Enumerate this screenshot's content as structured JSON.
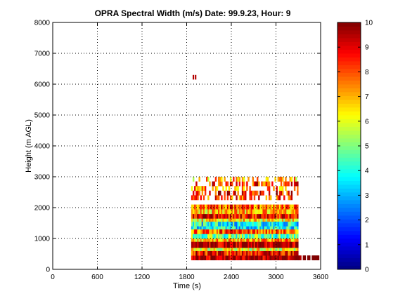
{
  "chart_data": {
    "type": "heatmap",
    "title": "OPRA Spectral Width (m/s)  Date: 99.9.23, Hour: 9",
    "xlabel": "Time (s)",
    "ylabel": "Height (m AGL)",
    "xlim": [
      0,
      3600
    ],
    "ylim": [
      0,
      8000
    ],
    "xticks": [
      "0",
      "600",
      "1200",
      "1800",
      "2400",
      "3000",
      "3600"
    ],
    "yticks": [
      "0",
      "1000",
      "2000",
      "3000",
      "4000",
      "5000",
      "6000",
      "7000",
      "8000"
    ],
    "grid": true,
    "colorbar": {
      "min": 0,
      "max": 10,
      "ticks": [
        "0",
        "1",
        "2",
        "3",
        "4",
        "5",
        "6",
        "7",
        "8",
        "9",
        "10"
      ],
      "colormap": "jet"
    },
    "data_extent": {
      "main_block": {
        "x": [
          1860,
          3300
        ],
        "y": [
          300,
          3000
        ]
      },
      "tail_band": {
        "x": [
          3300,
          3600
        ],
        "y": [
          300,
          450
        ]
      },
      "isolated_echo": {
        "x": [
          1880,
          1930
        ],
        "y": [
          6150,
          6300
        ]
      }
    },
    "bands": [
      {
        "y": [
          300,
          450
        ],
        "value": 9.8,
        "x_end": 3600
      },
      {
        "y": [
          450,
          600
        ],
        "value": 8.6
      },
      {
        "y": [
          600,
          700
        ],
        "value": 6.2
      },
      {
        "y": [
          700,
          900
        ],
        "value": 9.8
      },
      {
        "y": [
          900,
          1000
        ],
        "value": 7.2
      },
      {
        "y": [
          1000,
          1150
        ],
        "value": 4.8
      },
      {
        "y": [
          1150,
          1300
        ],
        "value": 7.8
      },
      {
        "y": [
          1300,
          1400
        ],
        "value": 3.6
      },
      {
        "y": [
          1400,
          1550
        ],
        "value": 3.8
      },
      {
        "y": [
          1550,
          1650
        ],
        "value": 6.4
      },
      {
        "y": [
          1650,
          1800
        ],
        "value": 8.8
      },
      {
        "y": [
          1800,
          1950
        ],
        "value": 6.8
      },
      {
        "y": [
          1950,
          2100
        ],
        "value": 7.8
      },
      {
        "y": [
          2100,
          2250
        ],
        "value": 0,
        "empty": true
      },
      {
        "y": [
          2250,
          2400
        ],
        "value": 8.2
      },
      {
        "y": [
          2400,
          2550
        ],
        "value": 8.6
      },
      {
        "y": [
          2550,
          2700
        ],
        "value": 7.5
      },
      {
        "y": [
          2700,
          2850
        ],
        "value": 8.4
      },
      {
        "y": [
          2850,
          3000
        ],
        "value": 7.0
      }
    ]
  }
}
